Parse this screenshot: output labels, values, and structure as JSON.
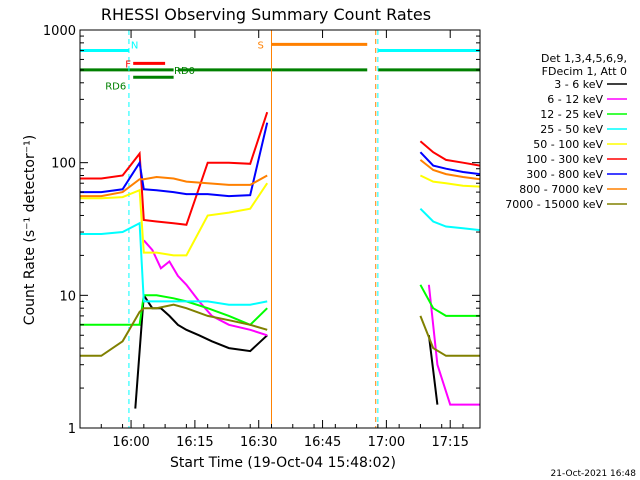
{
  "chart_data": {
    "type": "line",
    "title": "RHESSI Observing Summary Count Rates",
    "xlabel": "Start Time (19-Oct-04 15:48:02)",
    "ylabel": "Count Rate (s⁻¹ detector⁻¹)",
    "yscale": "log",
    "ylim": [
      1,
      1000
    ],
    "xlim_minutes": [
      0,
      94
    ],
    "x_ticks": [
      {
        "label": "16:00",
        "min": 12
      },
      {
        "label": "16:15",
        "min": 27
      },
      {
        "label": "16:30",
        "min": 42
      },
      {
        "label": "16:45",
        "min": 57
      },
      {
        "label": "17:00",
        "min": 72
      },
      {
        "label": "17:15",
        "min": 87
      }
    ],
    "y_ticks": [
      {
        "label": "1",
        "value": 1
      },
      {
        "label": "10",
        "value": 10
      },
      {
        "label": "100",
        "value": 100
      },
      {
        "label": "1000",
        "value": 1000
      }
    ],
    "legend_header": [
      "Det 1,3,4,5,6,9,",
      "FDecim 1, Att 0"
    ],
    "legend_position": "right",
    "series": [
      {
        "name": "3 - 6 keV",
        "color": "#000000",
        "x": [
          0,
          10,
          13,
          15,
          17,
          19,
          21,
          23,
          25,
          28,
          31,
          35,
          40,
          44,
          47,
          50,
          53,
          56,
          60,
          64,
          67,
          68,
          70,
          72,
          75,
          78,
          82,
          84,
          87,
          90,
          94
        ],
        "y": [
          0,
          0,
          1.4,
          10,
          8,
          8,
          7,
          6,
          5.5,
          5,
          4.5,
          4,
          3.8,
          5,
          0,
          0,
          0,
          0,
          0,
          0,
          0,
          0,
          0,
          0,
          0,
          0,
          5,
          1.5,
          0,
          0,
          0
        ]
      },
      {
        "name": "6 - 12 keV",
        "color": "#ff00ff",
        "x": [
          0,
          10,
          14,
          15,
          17,
          19,
          21,
          23,
          25,
          28,
          31,
          35,
          40,
          44,
          47,
          50,
          53,
          56,
          60,
          64,
          67,
          68,
          70,
          72,
          75,
          78,
          82,
          84,
          87,
          90,
          94
        ],
        "y": [
          0,
          0,
          0,
          26,
          22,
          16,
          18,
          14,
          12,
          9,
          7,
          6,
          5.5,
          5,
          0,
          0,
          0,
          0,
          0,
          0,
          0,
          0,
          0,
          0,
          0,
          0,
          12,
          3,
          1.5,
          1.5,
          1.5
        ]
      },
      {
        "name": "12 - 25 keV",
        "color": "#00ff00",
        "x": [
          0,
          5,
          10,
          14,
          15,
          18,
          22,
          25,
          30,
          35,
          40,
          44,
          47,
          68,
          75,
          78,
          80,
          83,
          86,
          90,
          94
        ],
        "y": [
          6,
          6,
          6,
          6,
          10,
          10,
          9.5,
          9,
          8,
          7,
          6,
          8,
          0,
          0,
          0,
          0,
          12,
          8,
          7,
          7,
          7
        ]
      },
      {
        "name": "25 - 50 keV",
        "color": "#00ffff",
        "x": [
          0,
          5,
          10,
          14,
          15,
          18,
          22,
          25,
          30,
          35,
          40,
          44,
          47,
          68,
          75,
          78,
          80,
          83,
          86,
          90,
          94
        ],
        "y": [
          29,
          29,
          30,
          35,
          9,
          9,
          9,
          9,
          9,
          8.5,
          8.5,
          9,
          0,
          0,
          0,
          0,
          45,
          36,
          33,
          32,
          31
        ]
      },
      {
        "name": "50 - 100 keV",
        "color": "#ffff00",
        "x": [
          0,
          5,
          10,
          14,
          15,
          18,
          22,
          25,
          30,
          35,
          40,
          44,
          47,
          68,
          75,
          78,
          80,
          83,
          86,
          90,
          94
        ],
        "y": [
          54,
          54,
          55,
          62,
          21,
          21,
          20,
          20,
          40,
          42,
          45,
          70,
          0,
          0,
          0,
          0,
          80,
          72,
          70,
          67,
          66
        ]
      },
      {
        "name": "100 - 300 keV",
        "color": "#ff0000",
        "x": [
          0,
          5,
          10,
          14,
          15,
          18,
          22,
          25,
          30,
          35,
          40,
          44,
          47,
          68,
          75,
          78,
          80,
          83,
          86,
          90,
          94
        ],
        "y": [
          76,
          76,
          80,
          117,
          37,
          36,
          35,
          34,
          100,
          100,
          98,
          240,
          0,
          0,
          0,
          0,
          145,
          120,
          105,
          100,
          95
        ]
      },
      {
        "name": "300 - 800 keV",
        "color": "#0000ff",
        "x": [
          0,
          5,
          10,
          14,
          15,
          18,
          22,
          25,
          30,
          35,
          40,
          44,
          47,
          68,
          75,
          78,
          80,
          83,
          86,
          90,
          94
        ],
        "y": [
          60,
          60,
          63,
          100,
          63,
          62,
          60,
          58,
          58,
          56,
          57,
          200,
          0,
          0,
          0,
          0,
          120,
          95,
          90,
          85,
          82
        ]
      },
      {
        "name": "800 - 7000 keV",
        "color": "#ff8000",
        "x": [
          0,
          5,
          10,
          14,
          15,
          18,
          22,
          25,
          30,
          35,
          40,
          44,
          47,
          68,
          75,
          78,
          80,
          83,
          86,
          90,
          94
        ],
        "y": [
          56,
          56,
          60,
          75,
          75,
          78,
          76,
          72,
          70,
          68,
          68,
          80,
          0,
          0,
          0,
          0,
          105,
          88,
          82,
          78,
          75
        ]
      },
      {
        "name": "7000 - 15000 keV",
        "color": "#808000",
        "x": [
          0,
          5,
          10,
          14,
          15,
          18,
          22,
          25,
          30,
          35,
          40,
          44,
          47,
          68,
          75,
          78,
          80,
          83,
          86,
          90,
          94
        ],
        "y": [
          3.5,
          3.5,
          4.5,
          7.5,
          8,
          8,
          8.5,
          8,
          7,
          6.5,
          6,
          5.5,
          0,
          0,
          0,
          0,
          7,
          4,
          3.5,
          3.5,
          3.5
        ]
      }
    ],
    "annotations": [
      {
        "label": "N",
        "color": "#00ffff"
      },
      {
        "label": "F",
        "color": "#ff0000"
      },
      {
        "label": "RD0",
        "color": "#008000"
      },
      {
        "label": "RD6",
        "color": "#008000"
      },
      {
        "label": "S",
        "color": "#ff8000"
      }
    ],
    "flag_bars": [
      {
        "label": "N",
        "color": "#00ffff",
        "level": 700,
        "spans": [
          [
            0,
            11.5
          ],
          [
            70,
            94
          ]
        ]
      },
      {
        "label": "F",
        "color": "#ff0000",
        "level": 560,
        "spans": [
          [
            12.5,
            20
          ]
        ]
      },
      {
        "label": "S",
        "color": "#ff8000",
        "level": 780,
        "spans": [
          [
            45,
            67.5
          ]
        ]
      },
      {
        "label": "RD0",
        "color": "#008000",
        "level": 500,
        "spans": [
          [
            0,
            22
          ],
          [
            23,
            67.5
          ],
          [
            70,
            94
          ]
        ]
      },
      {
        "label": "RD6",
        "color": "#008000",
        "level": 440,
        "spans": [
          [
            12.5,
            22
          ]
        ]
      }
    ],
    "markers": [
      {
        "min": 0,
        "color": "#00ffff",
        "style": "dashed"
      },
      {
        "min": 11.5,
        "color": "#00ffff",
        "style": "dashed"
      },
      {
        "min": 45,
        "color": "#ff8000",
        "style": "solid"
      },
      {
        "min": 69.5,
        "color": "#ff8000",
        "style": "dashed"
      },
      {
        "min": 70,
        "color": "#00ffff",
        "style": "dashed"
      },
      {
        "min": 94,
        "color": "#00ffff",
        "style": "dashed"
      }
    ]
  },
  "footer_date": "21-Oct-2021 16:48"
}
